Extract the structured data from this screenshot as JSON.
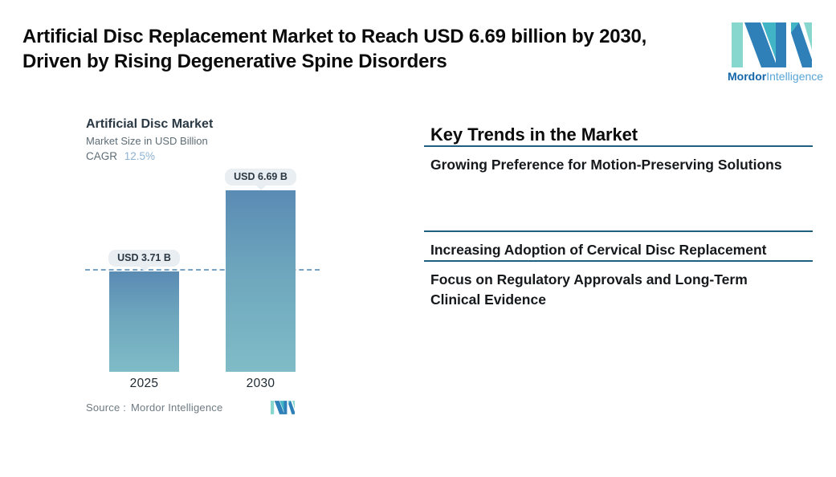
{
  "header": {
    "title_line1": "Artificial Disc Replacement Market to Reach USD 6.69 billion by 2030,",
    "title_line2": "Driven by Rising Degenerative Spine Disorders",
    "brand_name_bold": "Mordor",
    "brand_name_light": "Intelligence"
  },
  "chart": {
    "title": "Artificial Disc Market",
    "subtitle": "Market Size in USD Billion",
    "cagr_label": "CAGR",
    "cagr_value": "12.5%",
    "source_label": "Source :",
    "source_value": "Mordor Intelligence"
  },
  "chart_data": {
    "type": "bar",
    "title": "Artificial Disc Market",
    "subtitle": "Market Size in USD Billion",
    "unit": "USD Billion",
    "cagr_percent": 12.5,
    "categories": [
      "2025",
      "2030"
    ],
    "values": [
      3.71,
      6.69
    ],
    "value_labels": [
      "USD 3.71 B",
      "USD 6.69 B"
    ],
    "reference_line": {
      "at_value": 3.71,
      "style": "dashed"
    },
    "ylim": [
      0,
      6.69
    ],
    "grid": false,
    "legend": false,
    "colors": {
      "bar_gradient_top": "#5a8bb4",
      "bar_gradient_bottom": "#7fbcc7",
      "dashed_line": "#76a3c6",
      "label_pill_bg": "#e8eef1"
    }
  },
  "trends": {
    "heading": "Key Trends in the Market",
    "items": [
      {
        "text": "Growing Preference for Motion-Preserving Solutions"
      },
      {
        "text": "Increasing Adoption of Cervical Disc Replacement"
      },
      {
        "text": "Focus on Regulatory Approvals and Long-Term Clinical Evidence"
      }
    ]
  },
  "colors": {
    "divider": "#1f5f80",
    "logo_dark_blue": "#2f80b9",
    "logo_teal": "#41b5c6",
    "logo_mint": "#87d7cf"
  }
}
